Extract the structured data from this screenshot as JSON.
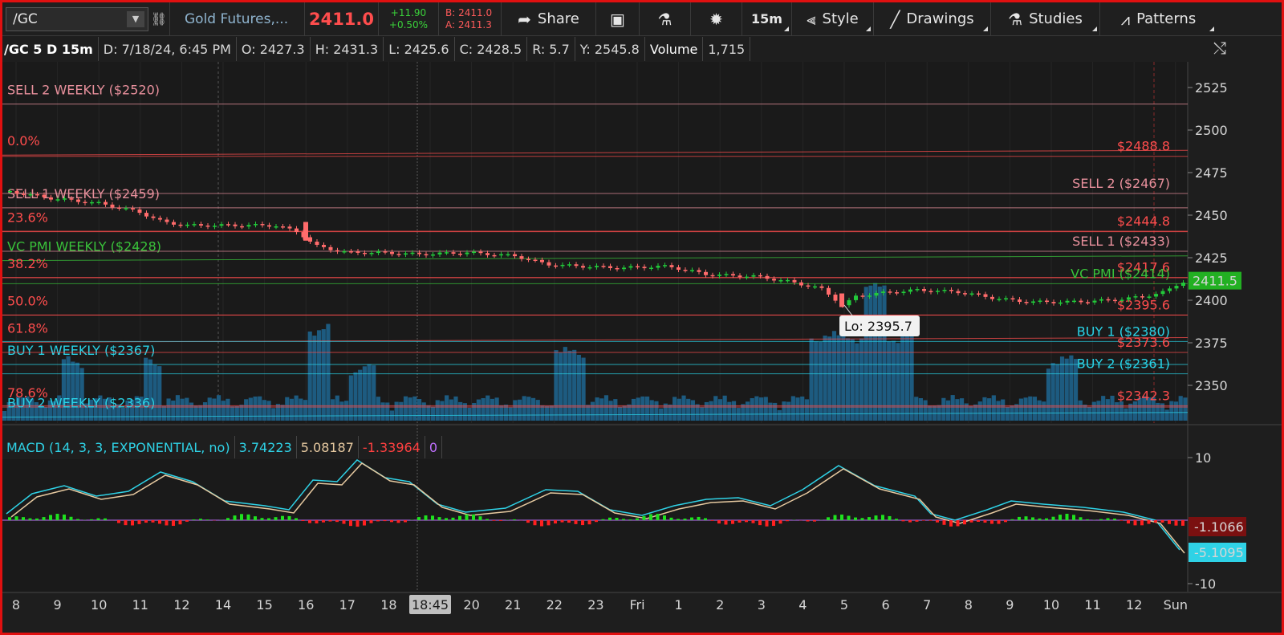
{
  "toolbar": {
    "symbol": "/GC",
    "link_icon": "link-icon",
    "description": "Gold Futures,...",
    "last_price": "2411.0",
    "change": "+11.90",
    "change_pct": "+0.50%",
    "bid": "B: 2411.0",
    "ask": "A: 2411.3",
    "share_label": "Share",
    "timeframe_label": "15m",
    "style_label": "Style",
    "drawings_label": "Drawings",
    "studies_label": "Studies",
    "patterns_label": "Patterns"
  },
  "infobar": {
    "symbol": "/GC 5 D 15m",
    "date": "D: 7/18/24, 6:45 PM",
    "open": "O: 2427.3",
    "high": "H: 2431.3",
    "low": "L: 2425.6",
    "close": "C: 2428.5",
    "range": "R: 5.7",
    "y": "Y: 2545.8",
    "volume_label": "Volume",
    "volume": "1,715"
  },
  "price_axis": {
    "ticks": [
      2525,
      2500,
      2475,
      2450,
      2425,
      2400,
      2375,
      2350
    ],
    "current": "2411.5",
    "min": 2332,
    "max": 2546
  },
  "levels_left": [
    {
      "text": "SELL 2 WEEKLY ($2520)",
      "price": 2520,
      "color": "#e8909c"
    },
    {
      "text": "0.0%",
      "price": 2490,
      "color": "#ff4d4d"
    },
    {
      "text": "SELL 1 WEEKLY ($2459)",
      "price": 2459,
      "color": "#e8909c"
    },
    {
      "text": "23.6%",
      "price": 2445,
      "color": "#ff4d4d"
    },
    {
      "text": "VC PMI WEEKLY ($2428)",
      "price": 2428,
      "color": "#39c23a"
    },
    {
      "text": "38.2%",
      "price": 2418,
      "color": "#ff4d4d"
    },
    {
      "text": "50.0%",
      "price": 2396,
      "color": "#ff4d4d"
    },
    {
      "text": "61.8%",
      "price": 2380,
      "color": "#ff4d4d"
    },
    {
      "text": "BUY 1 WEEKLY ($2367)",
      "price": 2367,
      "color": "#29d4e8"
    },
    {
      "text": "78.6%",
      "price": 2342,
      "color": "#ff4d4d"
    },
    {
      "text": "BUY 2 WEEKLY ($2336)",
      "price": 2336,
      "color": "#29d4e8"
    }
  ],
  "levels_right": [
    {
      "text": "$2488.8",
      "price": 2488.8,
      "color": "#ff4d4d"
    },
    {
      "text": "SELL 2 ($2467)",
      "price": 2467,
      "color": "#e8909c"
    },
    {
      "text": "$2444.8",
      "price": 2444.8,
      "color": "#ff4d4d"
    },
    {
      "text": "SELL 1 ($2433)",
      "price": 2433,
      "color": "#e8909c"
    },
    {
      "text": "$2417.6",
      "price": 2417.6,
      "color": "#ff4d4d"
    },
    {
      "text": "VC PMI ($2414)",
      "price": 2414,
      "color": "#39c23a"
    },
    {
      "text": "$2395.6",
      "price": 2395.6,
      "color": "#ff4d4d"
    },
    {
      "text": "BUY 1 ($2380)",
      "price": 2380,
      "color": "#29d4e8"
    },
    {
      "text": "$2373.6",
      "price": 2373.6,
      "color": "#ff4d4d"
    },
    {
      "text": "BUY 2 ($2361)",
      "price": 2361,
      "color": "#29d4e8"
    },
    {
      "text": "$2342.3",
      "price": 2342.3,
      "color": "#ff4d4d"
    }
  ],
  "low_marker": "Lo: 2395.7",
  "macd": {
    "label": "MACD (14, 3, 3, EXPONENTIAL, no)",
    "value": "3.74223",
    "avg": "5.08187",
    "diff": "-1.33964",
    "zero": "0",
    "axis_top": "10",
    "axis_bottom": "-10",
    "readout_diff": "-1.1066",
    "readout_value": "-5.1095"
  },
  "time_axis": {
    "labels": [
      "8",
      "9",
      "10",
      "11",
      "12",
      "14",
      "15",
      "16",
      "17",
      "18",
      "18:45",
      "20",
      "21",
      "22",
      "23",
      "Fri",
      "1",
      "2",
      "3",
      "4",
      "5",
      "6",
      "7",
      "8",
      "9",
      "10",
      "11",
      "12",
      "Sun"
    ]
  },
  "colors": {
    "up": "#22c93a",
    "down": "#ff6b6b",
    "volume": "#1f5f85",
    "macd_value": "#2fd2e6",
    "macd_avg": "#e6c9a0"
  }
}
